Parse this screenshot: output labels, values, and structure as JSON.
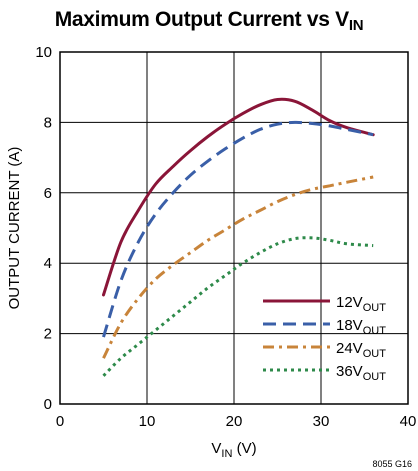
{
  "title": {
    "main": "Maximum Output Current vs V",
    "sub": "IN"
  },
  "figure_id": "8055 G16",
  "chart_data": {
    "type": "line",
    "title": "Maximum Output Current vs VIN",
    "xlabel": {
      "main": "V",
      "sub": "IN",
      "unit": " (V)"
    },
    "ylabel": "OUTPUT CURRENT (A)",
    "xlim": [
      0,
      40
    ],
    "ylim": [
      0,
      10
    ],
    "xticks": [
      0,
      10,
      20,
      30,
      40
    ],
    "yticks": [
      0,
      2,
      4,
      6,
      8,
      10
    ],
    "grid": true,
    "legend_position": "bottom-right",
    "series": [
      {
        "name": {
          "main": "12V",
          "sub": "OUT"
        },
        "color": "#8a1538",
        "dash": "solid",
        "x": [
          5,
          7,
          9,
          11,
          13,
          15,
          17,
          19,
          21,
          23,
          25,
          27,
          29,
          31,
          33,
          36
        ],
        "y": [
          3.1,
          4.6,
          5.5,
          6.25,
          6.75,
          7.2,
          7.6,
          7.95,
          8.25,
          8.5,
          8.65,
          8.6,
          8.35,
          8.05,
          7.85,
          7.65
        ]
      },
      {
        "name": {
          "main": "18V",
          "sub": "OUT"
        },
        "color": "#3a5fa8",
        "dash": "dashed",
        "x": [
          5,
          7,
          9,
          11,
          13,
          15,
          17,
          19,
          21,
          23,
          25,
          27,
          29,
          31,
          33,
          36
        ],
        "y": [
          1.9,
          3.5,
          4.6,
          5.4,
          6.0,
          6.5,
          6.9,
          7.25,
          7.55,
          7.8,
          7.95,
          8.0,
          7.97,
          7.9,
          7.8,
          7.65
        ]
      },
      {
        "name": {
          "main": "24V",
          "sub": "OUT"
        },
        "color": "#c8843a",
        "dash": "dashdot",
        "x": [
          5,
          7,
          9,
          11,
          13,
          15,
          17,
          19,
          21,
          23,
          25,
          27,
          29,
          31,
          33,
          36
        ],
        "y": [
          1.3,
          2.3,
          3.0,
          3.55,
          3.95,
          4.3,
          4.65,
          4.95,
          5.25,
          5.5,
          5.75,
          5.95,
          6.1,
          6.2,
          6.3,
          6.45
        ]
      },
      {
        "name": {
          "main": "36V",
          "sub": "OUT"
        },
        "color": "#2e8a4a",
        "dash": "dotted",
        "x": [
          5,
          7,
          9,
          11,
          13,
          15,
          17,
          19,
          21,
          23,
          25,
          27,
          29,
          31,
          33,
          36
        ],
        "y": [
          0.8,
          1.3,
          1.7,
          2.1,
          2.5,
          2.9,
          3.3,
          3.65,
          4.0,
          4.3,
          4.55,
          4.7,
          4.72,
          4.65,
          4.55,
          4.5
        ]
      }
    ]
  }
}
